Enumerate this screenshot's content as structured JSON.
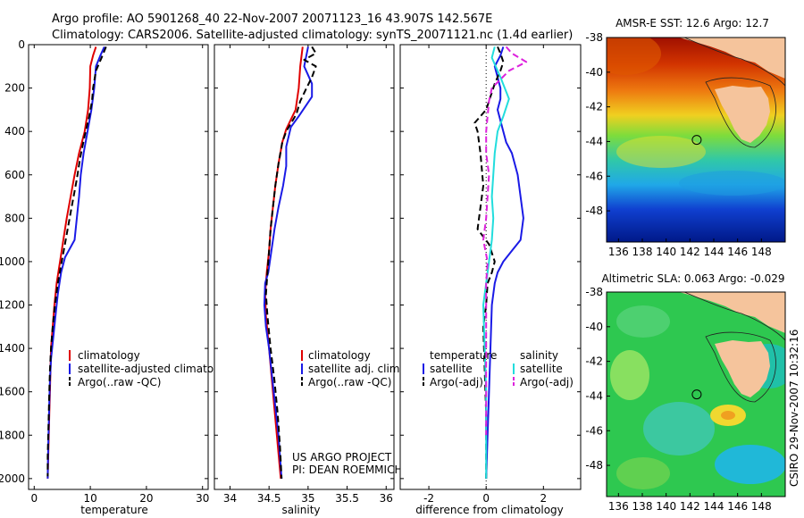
{
  "header": {
    "line1": "Argo profile: AO 5901268_40 22-Nov-2007 20071123_16 43.907S 142.567E",
    "line2": "Climatology: CARS2006. Satellite-adjusted climatology: synTS_20071121.nc (1.4d earlier)"
  },
  "side_stamp": "CSIRO 29-Nov-2007 10:32:16",
  "project_note": {
    "line1": "US ARGO PROJECT",
    "line2": "PI: DEAN ROEMMICH"
  },
  "colors": {
    "climatology": "#e00000",
    "satellite": "#1a1ae6",
    "argo": "#000000",
    "sat_salinity": "#22dddd",
    "argo_salinity": "#dd22dd",
    "land": "#f5c49c"
  },
  "chart_data": [
    {
      "type": "line",
      "xlabel": "temperature",
      "xlim": [
        -1,
        31
      ],
      "ylim": [
        2050,
        0
      ],
      "xticks": [
        0,
        10,
        20,
        30
      ],
      "yticks": [
        0,
        200,
        400,
        600,
        800,
        1000,
        1200,
        1400,
        1600,
        1800,
        2000
      ],
      "legend_placement": "lower-right",
      "series": [
        {
          "name": "climatology",
          "color": "#e00000",
          "style": "solid",
          "points": [
            [
              11.0,
              10
            ],
            [
              10.5,
              50
            ],
            [
              10.0,
              100
            ],
            [
              9.9,
              200
            ],
            [
              9.6,
              300
            ],
            [
              9.0,
              400
            ],
            [
              8.0,
              500
            ],
            [
              7.2,
              600
            ],
            [
              6.5,
              700
            ],
            [
              5.8,
              800
            ],
            [
              5.2,
              900
            ],
            [
              4.6,
              1000
            ],
            [
              4.0,
              1100
            ],
            [
              3.6,
              1200
            ],
            [
              3.3,
              1300
            ],
            [
              3.0,
              1400
            ],
            [
              2.9,
              1500
            ],
            [
              2.8,
              1600
            ],
            [
              2.7,
              1700
            ],
            [
              2.6,
              1800
            ],
            [
              2.5,
              1900
            ],
            [
              2.4,
              2000
            ]
          ]
        },
        {
          "name": "satellite-adjusted climatology",
          "color": "#1a1ae6",
          "style": "solid",
          "points": [
            [
              12.5,
              10
            ],
            [
              11.8,
              50
            ],
            [
              11.0,
              100
            ],
            [
              10.7,
              200
            ],
            [
              10.2,
              300
            ],
            [
              9.5,
              400
            ],
            [
              8.8,
              500
            ],
            [
              8.3,
              600
            ],
            [
              8.0,
              700
            ],
            [
              7.6,
              800
            ],
            [
              7.2,
              900
            ],
            [
              5.5,
              980
            ],
            [
              4.8,
              1050
            ],
            [
              4.2,
              1150
            ],
            [
              3.8,
              1250
            ],
            [
              3.4,
              1350
            ],
            [
              3.0,
              1450
            ],
            [
              2.8,
              1550
            ],
            [
              2.7,
              1650
            ],
            [
              2.6,
              1750
            ],
            [
              2.5,
              1850
            ],
            [
              2.4,
              2000
            ]
          ]
        },
        {
          "name": "Argo(..raw -QC)",
          "color": "#000000",
          "style": "dashed",
          "points": [
            [
              12.8,
              10
            ],
            [
              12.0,
              60
            ],
            [
              11.0,
              120
            ],
            [
              10.5,
              200
            ],
            [
              10.3,
              260
            ],
            [
              9.8,
              330
            ],
            [
              9.0,
              420
            ],
            [
              8.2,
              520
            ],
            [
              7.6,
              620
            ],
            [
              6.6,
              760
            ],
            [
              5.9,
              860
            ],
            [
              5.2,
              960
            ],
            [
              4.9,
              1000
            ],
            [
              4.2,
              1100
            ],
            [
              3.7,
              1200
            ],
            [
              3.3,
              1300
            ],
            [
              3.0,
              1400
            ],
            [
              2.8,
              1500
            ],
            [
              2.7,
              1600
            ],
            [
              2.6,
              1700
            ],
            [
              2.5,
              1800
            ],
            [
              2.4,
              1900
            ],
            [
              2.4,
              1990
            ]
          ]
        }
      ]
    },
    {
      "type": "line",
      "xlabel": "salinity",
      "xlim": [
        33.8,
        36.1
      ],
      "ylim": [
        2050,
        0
      ],
      "xticks": [
        34,
        34.5,
        35,
        35.5,
        36
      ],
      "legend_placement": "lower-right",
      "series": [
        {
          "name": "climatology",
          "color": "#e00000",
          "style": "solid",
          "points": [
            [
              34.93,
              10
            ],
            [
              34.9,
              100
            ],
            [
              34.88,
              200
            ],
            [
              34.84,
              300
            ],
            [
              34.72,
              390
            ],
            [
              34.67,
              450
            ],
            [
              34.62,
              550
            ],
            [
              34.58,
              650
            ],
            [
              34.55,
              750
            ],
            [
              34.52,
              850
            ],
            [
              34.5,
              950
            ],
            [
              34.47,
              1050
            ],
            [
              34.45,
              1150
            ],
            [
              34.46,
              1250
            ],
            [
              34.5,
              1400
            ],
            [
              34.55,
              1600
            ],
            [
              34.6,
              1800
            ],
            [
              34.65,
              2000
            ]
          ]
        },
        {
          "name": "satellite adj. clim.",
          "color": "#1a1ae6",
          "style": "solid",
          "points": [
            [
              35.0,
              10
            ],
            [
              34.95,
              100
            ],
            [
              35.05,
              180
            ],
            [
              35.05,
              240
            ],
            [
              34.88,
              330
            ],
            [
              34.78,
              380
            ],
            [
              34.72,
              470
            ],
            [
              34.72,
              560
            ],
            [
              34.68,
              650
            ],
            [
              34.62,
              750
            ],
            [
              34.57,
              850
            ],
            [
              34.53,
              950
            ],
            [
              34.49,
              1050
            ],
            [
              34.45,
              1100
            ],
            [
              34.44,
              1200
            ],
            [
              34.46,
              1300
            ],
            [
              34.5,
              1400
            ],
            [
              34.56,
              1600
            ],
            [
              34.62,
              1800
            ],
            [
              34.66,
              2000
            ]
          ]
        },
        {
          "name": "Argo(..raw -QC)",
          "color": "#000000",
          "style": "dashed",
          "points": [
            [
              35.05,
              10
            ],
            [
              35.1,
              40
            ],
            [
              34.95,
              70
            ],
            [
              35.1,
              100
            ],
            [
              35.05,
              150
            ],
            [
              34.98,
              200
            ],
            [
              34.9,
              260
            ],
            [
              34.85,
              320
            ],
            [
              34.72,
              400
            ],
            [
              34.67,
              450
            ],
            [
              34.62,
              550
            ],
            [
              34.58,
              650
            ],
            [
              34.55,
              750
            ],
            [
              34.52,
              850
            ],
            [
              34.5,
              950
            ],
            [
              34.48,
              1050
            ],
            [
              34.46,
              1150
            ],
            [
              34.48,
              1250
            ],
            [
              34.52,
              1400
            ],
            [
              34.57,
              1550
            ],
            [
              34.61,
              1700
            ],
            [
              34.64,
              1850
            ],
            [
              34.66,
              2000
            ]
          ]
        }
      ]
    },
    {
      "type": "line",
      "xlabel": "difference from climatology",
      "xlim": [
        -3,
        3.3
      ],
      "ylim": [
        2050,
        0
      ],
      "xticks": [
        -2,
        0,
        2
      ],
      "zero_line": "dotted",
      "legend_placement": "lower-center",
      "legend_groups": [
        "temperature",
        "salinity"
      ],
      "series": [
        {
          "name": "satellite",
          "group": "temperature",
          "color": "#1a1ae6",
          "style": "solid",
          "points": [
            [
              0.6,
              10
            ],
            [
              0.5,
              50
            ],
            [
              0.3,
              100
            ],
            [
              0.4,
              150
            ],
            [
              0.5,
              200
            ],
            [
              0.5,
              250
            ],
            [
              0.4,
              300
            ],
            [
              0.5,
              350
            ],
            [
              0.6,
              400
            ],
            [
              0.7,
              450
            ],
            [
              0.9,
              500
            ],
            [
              1.1,
              600
            ],
            [
              1.2,
              700
            ],
            [
              1.3,
              800
            ],
            [
              1.2,
              900
            ],
            [
              0.9,
              950
            ],
            [
              0.6,
              1000
            ],
            [
              0.4,
              1050
            ],
            [
              0.3,
              1100
            ],
            [
              0.2,
              1200
            ],
            [
              0.15,
              1400
            ],
            [
              0.1,
              1600
            ],
            [
              0.05,
              1800
            ],
            [
              0.0,
              2000
            ]
          ]
        },
        {
          "name": "Argo(-adj)",
          "group": "temperature",
          "color": "#000000",
          "style": "dashed",
          "points": [
            [
              0.4,
              10
            ],
            [
              0.5,
              40
            ],
            [
              0.6,
              80
            ],
            [
              0.5,
              120
            ],
            [
              0.3,
              180
            ],
            [
              0.0,
              300
            ],
            [
              -0.4,
              360
            ],
            [
              -0.3,
              400
            ],
            [
              -0.2,
              500
            ],
            [
              -0.1,
              650
            ],
            [
              -0.2,
              750
            ],
            [
              -0.3,
              850
            ],
            [
              0.1,
              920
            ],
            [
              0.3,
              1000
            ],
            [
              0.2,
              1050
            ],
            [
              0.05,
              1100
            ],
            [
              0.0,
              1200
            ],
            [
              -0.1,
              1300
            ],
            [
              -0.05,
              1500
            ],
            [
              0.0,
              1700
            ],
            [
              0.0,
              2000
            ]
          ]
        },
        {
          "name": "satellite",
          "group": "salinity",
          "color": "#22dddd",
          "style": "solid",
          "points": [
            [
              0.3,
              10
            ],
            [
              0.2,
              60
            ],
            [
              0.5,
              150
            ],
            [
              0.8,
              250
            ],
            [
              0.6,
              330
            ],
            [
              0.4,
              400
            ],
            [
              0.3,
              500
            ],
            [
              0.25,
              600
            ],
            [
              0.2,
              700
            ],
            [
              0.25,
              800
            ],
            [
              0.2,
              900
            ],
            [
              0.1,
              1000
            ],
            [
              0.0,
              1100
            ],
            [
              -0.1,
              1200
            ],
            [
              -0.05,
              1400
            ],
            [
              0.0,
              1600
            ],
            [
              0.0,
              1800
            ],
            [
              0.0,
              2000
            ]
          ]
        },
        {
          "name": "Argo(-adj)",
          "group": "salinity",
          "color": "#dd22dd",
          "style": "dashed",
          "points": [
            [
              0.7,
              10
            ],
            [
              0.9,
              40
            ],
            [
              1.4,
              80
            ],
            [
              0.8,
              120
            ],
            [
              0.5,
              160
            ],
            [
              0.2,
              200
            ],
            [
              0.1,
              260
            ],
            [
              0.05,
              330
            ],
            [
              0.0,
              400
            ],
            [
              0.0,
              500
            ],
            [
              0.1,
              600
            ],
            [
              0.05,
              700
            ],
            [
              0.0,
              800
            ],
            [
              -0.1,
              900
            ],
            [
              0.05,
              1000
            ],
            [
              0.0,
              1100
            ],
            [
              0.0,
              1300
            ],
            [
              0.0,
              1500
            ],
            [
              0.0,
              1800
            ]
          ]
        }
      ]
    },
    {
      "type": "heatmap",
      "title": "AMSR-E SST: 12.6 Argo: 12.7",
      "xlim": [
        135,
        150
      ],
      "ylim": [
        -49.8,
        -38
      ],
      "xticks": [
        136,
        138,
        140,
        142,
        144,
        146,
        148
      ],
      "yticks": [
        -38,
        -40,
        -42,
        -44,
        -46,
        -48
      ],
      "float_position": [
        142.567,
        -43.907
      ]
    },
    {
      "type": "heatmap",
      "title": "Altimetric SLA: 0.063 Argo: -0.029",
      "xlim": [
        135,
        150
      ],
      "ylim": [
        -49.8,
        -38
      ],
      "xticks": [
        136,
        138,
        140,
        142,
        144,
        146,
        148
      ],
      "yticks": [
        -38,
        -40,
        -42,
        -44,
        -46,
        -48
      ],
      "float_position": [
        142.567,
        -43.907
      ]
    }
  ]
}
